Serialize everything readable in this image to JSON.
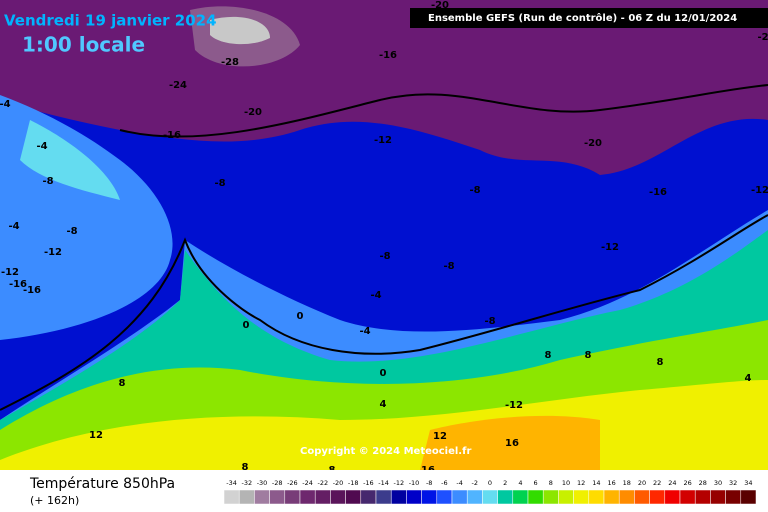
{
  "header": {
    "title": "Vendredi 19 janvier 2024",
    "time": "1:00 locale",
    "run": "Ensemble GEFS  (Run de contrôle)  -  06 Z du 12/01/2024"
  },
  "map": {
    "contour_labels": [
      -20,
      -16,
      -28,
      -24,
      -20,
      -16,
      -12,
      -20,
      -16,
      -12,
      -8,
      -8,
      -8,
      -4,
      -4,
      -8,
      -12,
      -12,
      -16,
      -16,
      -4,
      -8,
      -8,
      -12,
      -4,
      0,
      0,
      -4,
      -8,
      0,
      4,
      8,
      12,
      8,
      8,
      -12,
      12,
      16,
      8,
      8,
      16,
      4,
      8,
      -2
    ],
    "copyright": "Copyright © 2024 Meteociel.fr"
  },
  "footer": {
    "label": "Température 850hPa",
    "lead": "(+ 162h)"
  },
  "legend": {
    "values": [
      -34,
      -32,
      -30,
      -28,
      -26,
      -24,
      -22,
      -20,
      -18,
      -16,
      -14,
      -12,
      -10,
      -8,
      -6,
      -4,
      -2,
      0,
      2,
      4,
      6,
      8,
      10,
      12,
      14,
      16,
      18,
      20,
      22,
      24,
      26,
      28,
      30,
      32,
      34
    ],
    "colors": [
      "#d2d2d2",
      "#b4b4b4",
      "#a07ca0",
      "#8c5a8c",
      "#783c78",
      "#6e286e",
      "#641e64",
      "#5a145a",
      "#500a50",
      "#46286e",
      "#3c3c8c",
      "#0000a0",
      "#0000c8",
      "#0014e6",
      "#1e50ff",
      "#3c8cff",
      "#50b4ff",
      "#64dcf0",
      "#00c8a0",
      "#00d250",
      "#32dc00",
      "#8ce600",
      "#c8f000",
      "#f0f000",
      "#ffdc00",
      "#ffb400",
      "#ff8c00",
      "#ff5a00",
      "#ff2800",
      "#f00000",
      "#d20000",
      "#b40000",
      "#960000",
      "#780000",
      "#5a0000"
    ]
  }
}
